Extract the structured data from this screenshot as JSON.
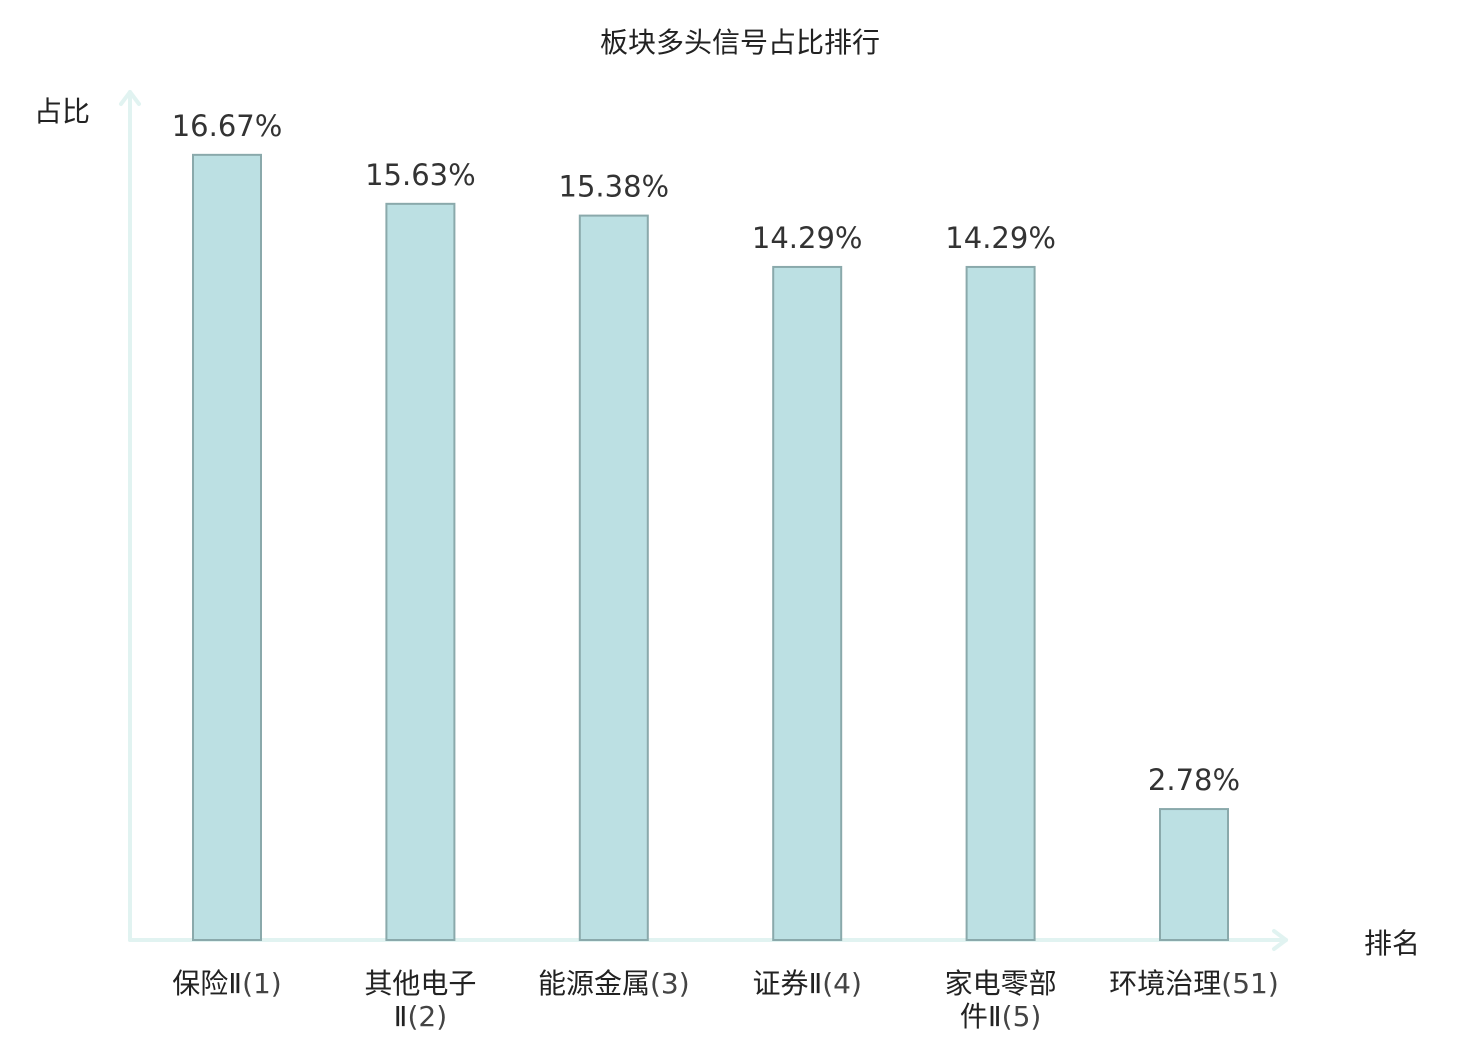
{
  "chart_data": {
    "type": "bar",
    "title": "板块多头信号占比排行",
    "ylabel": "占比",
    "xlabel": "排名",
    "ylim": [
      0,
      18
    ],
    "grid": false,
    "legend": "none",
    "categories": [
      {
        "lines": [
          {
            "name": "保险Ⅱ",
            "rank": "(1)"
          }
        ]
      },
      {
        "lines": [
          {
            "name": "其他电子",
            "rank": ""
          },
          {
            "name": "Ⅱ",
            "rank": "(2)"
          }
        ]
      },
      {
        "lines": [
          {
            "name": "能源金属",
            "rank": "(3)"
          }
        ]
      },
      {
        "lines": [
          {
            "name": "证券Ⅱ",
            "rank": "(4)"
          }
        ]
      },
      {
        "lines": [
          {
            "name": "家电零部",
            "rank": ""
          },
          {
            "name": "件Ⅱ",
            "rank": "(5)"
          }
        ]
      },
      {
        "lines": [
          {
            "name": "环境治理",
            "rank": "(51)"
          }
        ],
        "highlight": true
      }
    ],
    "values": [
      16.67,
      15.63,
      15.38,
      14.29,
      14.29,
      2.78
    ],
    "value_labels": [
      "16.67%",
      "15.63%",
      "15.38%",
      "14.29%",
      "14.29%",
      "2.78%"
    ],
    "colors": {
      "bar_fill": "#bce0e3",
      "bar_stroke": "#8aa9ab",
      "axis": "#e1f3f1",
      "highlight_label": "#e00000"
    }
  }
}
